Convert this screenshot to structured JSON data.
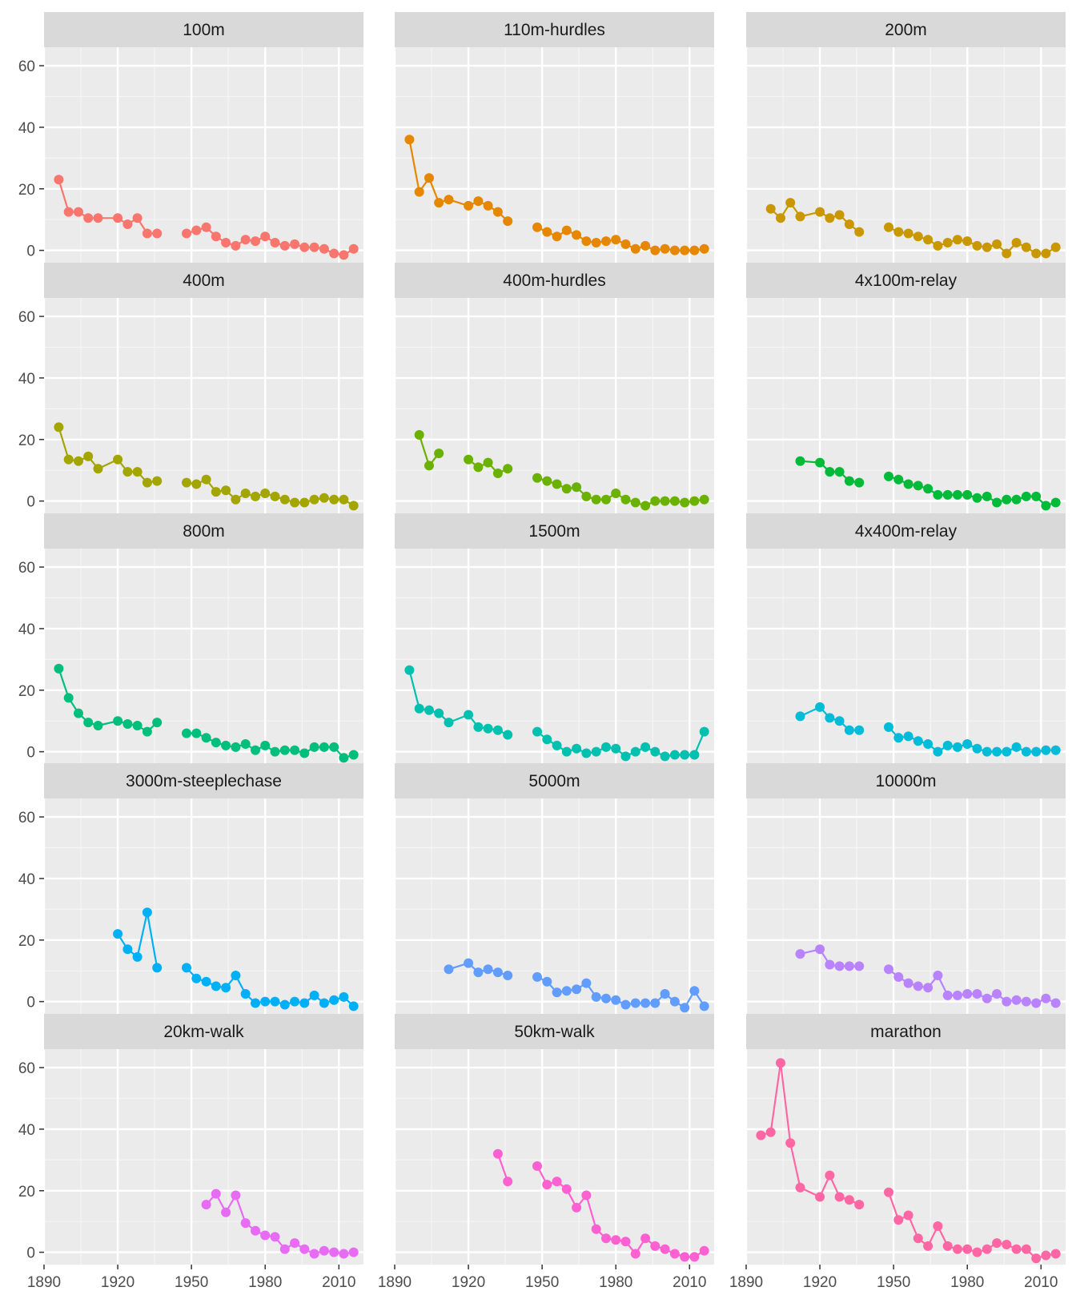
{
  "chart_data": {
    "type": "line",
    "layout": "facet_wrap",
    "ncol": 3,
    "x_ticks": [
      1890,
      1920,
      1950,
      1980,
      2010
    ],
    "y_ticks": [
      0,
      20,
      40,
      60
    ],
    "xlim": [
      1890,
      2020
    ],
    "ylim": [
      -4,
      66
    ],
    "colors": [
      "#F8766D",
      "#E58700",
      "#C99800",
      "#A3A500",
      "#6BB100",
      "#00BA38",
      "#00BF7D",
      "#00C0AF",
      "#00BCD8",
      "#00B0F6",
      "#619CFF",
      "#B983FF",
      "#E76BF3",
      "#FD61D1",
      "#FF67A4"
    ],
    "panels": [
      {
        "name": "100m",
        "x": [
          1896,
          1900,
          1904,
          1908,
          1912,
          1920,
          1924,
          1928,
          1932,
          1936,
          1948,
          1952,
          1956,
          1960,
          1964,
          1968,
          1972,
          1976,
          1980,
          1984,
          1988,
          1992,
          1996,
          2000,
          2004,
          2008,
          2012,
          2016
        ],
        "y": [
          23,
          12.5,
          12.5,
          10.5,
          10.5,
          10.5,
          8.5,
          10.5,
          5.5,
          5.5,
          5.5,
          6.5,
          7.5,
          4.5,
          2.5,
          1.5,
          3.5,
          3,
          4.5,
          2.5,
          1.5,
          2,
          1,
          1,
          0.5,
          -1,
          -1.5,
          0.5
        ]
      },
      {
        "name": "110m-hurdles",
        "x": [
          1896,
          1900,
          1904,
          1908,
          1912,
          1920,
          1924,
          1928,
          1932,
          1936,
          1948,
          1952,
          1956,
          1960,
          1964,
          1968,
          1972,
          1976,
          1980,
          1984,
          1988,
          1992,
          1996,
          2000,
          2004,
          2008,
          2012,
          2016
        ],
        "y": [
          36,
          19,
          23.5,
          15.5,
          16.5,
          14.5,
          16,
          14.5,
          12.5,
          9.5,
          7.5,
          6,
          4.5,
          6.5,
          5,
          3,
          2.5,
          3,
          3.5,
          2,
          0.5,
          1.5,
          0,
          0.5,
          0,
          0,
          0,
          0.5
        ]
      },
      {
        "name": "200m",
        "x": [
          1900,
          1904,
          1908,
          1912,
          1920,
          1924,
          1928,
          1932,
          1936,
          1948,
          1952,
          1956,
          1960,
          1964,
          1968,
          1972,
          1976,
          1980,
          1984,
          1988,
          1992,
          1996,
          2000,
          2004,
          2008,
          2012,
          2016
        ],
        "y": [
          13.5,
          10.5,
          15.5,
          11,
          12.5,
          10.5,
          11.5,
          8.5,
          6,
          7.5,
          6,
          5.5,
          4.5,
          3.5,
          1.5,
          2.5,
          3.5,
          3,
          1.5,
          1,
          2,
          -1,
          2.5,
          1,
          -1,
          -1,
          1
        ]
      },
      {
        "name": "400m",
        "x": [
          1896,
          1900,
          1904,
          1908,
          1912,
          1920,
          1924,
          1928,
          1932,
          1936,
          1948,
          1952,
          1956,
          1960,
          1964,
          1968,
          1972,
          1976,
          1980,
          1984,
          1988,
          1992,
          1996,
          2000,
          2004,
          2008,
          2012,
          2016
        ],
        "y": [
          24,
          13.5,
          13,
          14.5,
          10.5,
          13.5,
          9.5,
          9.5,
          6,
          6.5,
          6,
          5.5,
          7,
          3,
          3.5,
          0.5,
          2.5,
          1.5,
          2.5,
          1.5,
          0.5,
          -0.5,
          -0.5,
          0.5,
          1,
          0.5,
          0.5,
          -1.5
        ]
      },
      {
        "name": "400m-hurdles",
        "x": [
          1900,
          1904,
          1908,
          1920,
          1924,
          1928,
          1932,
          1936,
          1948,
          1952,
          1956,
          1960,
          1964,
          1968,
          1972,
          1976,
          1980,
          1984,
          1988,
          1992,
          1996,
          2000,
          2004,
          2008,
          2012,
          2016
        ],
        "y": [
          21.5,
          11.5,
          15.5,
          13.5,
          11,
          12.5,
          9,
          10.5,
          7.5,
          6.5,
          5.5,
          4,
          4.5,
          1.5,
          0.5,
          0.5,
          2.5,
          0.5,
          -0.5,
          -1.5,
          0,
          0,
          0,
          -0.5,
          0,
          0.5
        ]
      },
      {
        "name": "4x100m-relay",
        "x": [
          1912,
          1920,
          1924,
          1928,
          1932,
          1936,
          1948,
          1952,
          1956,
          1960,
          1964,
          1968,
          1972,
          1976,
          1980,
          1984,
          1988,
          1992,
          1996,
          2000,
          2004,
          2008,
          2012,
          2016
        ],
        "y": [
          13,
          12.5,
          9.5,
          9.5,
          6.5,
          6,
          8,
          7,
          5.5,
          5,
          4,
          2,
          2,
          2,
          2,
          1,
          1.5,
          -0.5,
          0.5,
          0.5,
          1.5,
          1.5,
          -1.5,
          -0.5
        ]
      },
      {
        "name": "800m",
        "x": [
          1896,
          1900,
          1904,
          1908,
          1912,
          1920,
          1924,
          1928,
          1932,
          1936,
          1948,
          1952,
          1956,
          1960,
          1964,
          1968,
          1972,
          1976,
          1980,
          1984,
          1988,
          1992,
          1996,
          2000,
          2004,
          2008,
          2012,
          2016
        ],
        "y": [
          27,
          17.5,
          12.5,
          9.5,
          8.5,
          10,
          9,
          8.5,
          6.5,
          9.5,
          6,
          6,
          4.5,
          3,
          2,
          1.5,
          2.5,
          0.5,
          2,
          0,
          0.5,
          0.5,
          -0.5,
          1.5,
          1.5,
          1.5,
          -2,
          -1
        ]
      },
      {
        "name": "1500m",
        "x": [
          1896,
          1900,
          1904,
          1908,
          1912,
          1920,
          1924,
          1928,
          1932,
          1936,
          1948,
          1952,
          1956,
          1960,
          1964,
          1968,
          1972,
          1976,
          1980,
          1984,
          1988,
          1992,
          1996,
          2000,
          2004,
          2008,
          2012,
          2016
        ],
        "y": [
          26.5,
          14,
          13.5,
          12.5,
          9.5,
          12,
          8,
          7.5,
          7,
          5.5,
          6.5,
          4,
          2,
          0,
          1,
          -0.5,
          0,
          1.5,
          1,
          -1.5,
          0,
          1.5,
          0,
          -1.5,
          -1,
          -1,
          -1,
          6.5
        ]
      },
      {
        "name": "4x400m-relay",
        "x": [
          1912,
          1920,
          1924,
          1928,
          1932,
          1936,
          1948,
          1952,
          1956,
          1960,
          1964,
          1968,
          1972,
          1976,
          1980,
          1984,
          1988,
          1992,
          1996,
          2000,
          2004,
          2008,
          2012,
          2016
        ],
        "y": [
          11.5,
          14.5,
          11,
          10,
          7,
          7,
          8,
          4.5,
          5,
          3.5,
          2.5,
          0,
          2,
          1.5,
          2.5,
          1,
          0,
          0,
          0,
          1.5,
          0,
          0,
          0.5,
          0.5
        ]
      },
      {
        "name": "3000m-steeplechase",
        "x": [
          1920,
          1924,
          1928,
          1932,
          1936,
          1948,
          1952,
          1956,
          1960,
          1964,
          1968,
          1972,
          1976,
          1980,
          1984,
          1988,
          1992,
          1996,
          2000,
          2004,
          2008,
          2012,
          2016
        ],
        "y": [
          22,
          17,
          14.5,
          29,
          11,
          11,
          7.5,
          6.5,
          5,
          4.5,
          8.5,
          2.5,
          -0.5,
          0,
          0,
          -1,
          0,
          -0.5,
          2,
          -0.5,
          0.5,
          1.5,
          -1.5
        ]
      },
      {
        "name": "5000m",
        "x": [
          1912,
          1920,
          1924,
          1928,
          1932,
          1936,
          1948,
          1952,
          1956,
          1960,
          1964,
          1968,
          1972,
          1976,
          1980,
          1984,
          1988,
          1992,
          1996,
          2000,
          2004,
          2008,
          2012,
          2016
        ],
        "y": [
          10.5,
          12.5,
          9.5,
          10.5,
          9.5,
          8.5,
          8,
          6.5,
          3,
          3.5,
          4,
          6,
          1.5,
          1,
          0.5,
          -1,
          -0.5,
          -0.5,
          -0.5,
          2.5,
          0,
          -2,
          3.5,
          -1.5
        ]
      },
      {
        "name": "10000m",
        "x": [
          1912,
          1920,
          1924,
          1928,
          1932,
          1936,
          1948,
          1952,
          1956,
          1960,
          1964,
          1968,
          1972,
          1976,
          1980,
          1984,
          1988,
          1992,
          1996,
          2000,
          2004,
          2008,
          2012,
          2016
        ],
        "y": [
          15.5,
          17,
          12,
          11.5,
          11.5,
          11.5,
          10.5,
          8,
          6,
          5,
          4.5,
          8.5,
          2,
          2,
          2.5,
          2.5,
          1,
          2.5,
          0,
          0.5,
          0,
          -0.5,
          1,
          -0.5
        ]
      },
      {
        "name": "20km-walk",
        "x": [
          1956,
          1960,
          1964,
          1968,
          1972,
          1976,
          1980,
          1984,
          1988,
          1992,
          1996,
          2000,
          2004,
          2008,
          2012,
          2016
        ],
        "y": [
          15.5,
          19,
          13,
          18.5,
          9.5,
          7,
          5.5,
          5,
          1,
          3,
          1,
          -0.5,
          0.5,
          0,
          -0.5,
          0
        ]
      },
      {
        "name": "50km-walk",
        "x": [
          1932,
          1936,
          1948,
          1952,
          1956,
          1960,
          1964,
          1968,
          1972,
          1976,
          1980,
          1984,
          1988,
          1992,
          1996,
          2000,
          2004,
          2008,
          2012,
          2016
        ],
        "y": [
          32,
          23,
          28,
          22,
          23,
          20.5,
          14.5,
          18.5,
          7.5,
          4.5,
          4,
          3.5,
          -0.5,
          4.5,
          2,
          1,
          -0.5,
          -1.5,
          -1.5,
          0.5
        ]
      },
      {
        "name": "marathon",
        "x": [
          1896,
          1900,
          1904,
          1908,
          1912,
          1920,
          1924,
          1928,
          1932,
          1936,
          1948,
          1952,
          1956,
          1960,
          1964,
          1968,
          1972,
          1976,
          1980,
          1984,
          1988,
          1992,
          1996,
          2000,
          2004,
          2008,
          2012,
          2016
        ],
        "y": [
          38,
          39,
          61.5,
          35.5,
          21,
          18,
          25,
          18,
          17,
          15.5,
          19.5,
          10.5,
          12,
          4.5,
          2,
          8.5,
          2,
          1,
          1,
          0,
          1,
          3,
          2.5,
          1,
          1,
          -2,
          -1,
          -0.5
        ]
      }
    ]
  }
}
